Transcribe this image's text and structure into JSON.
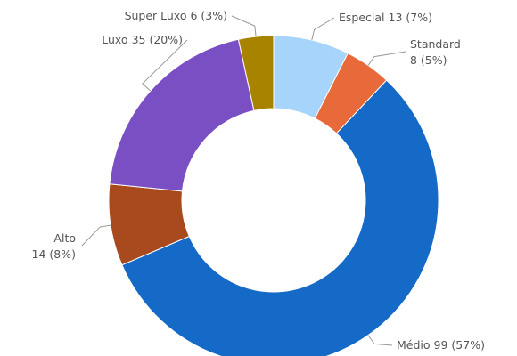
{
  "chart_data": {
    "type": "donut",
    "categories": [
      "Especial",
      "Standard",
      "Médio",
      "Alto",
      "Luxo",
      "Super Luxo"
    ],
    "values": [
      13,
      8,
      99,
      14,
      35,
      6
    ],
    "value_labels": [
      "13 (7%)",
      "8 (5%)",
      "99 (57%)",
      "14 (8%)",
      "35 (20%)",
      "6 (3%)"
    ],
    "colors": [
      "#a6d4fa",
      "#e8693a",
      "#1569c7",
      "#a84a1e",
      "#7b4fc4",
      "#a88300"
    ]
  }
}
